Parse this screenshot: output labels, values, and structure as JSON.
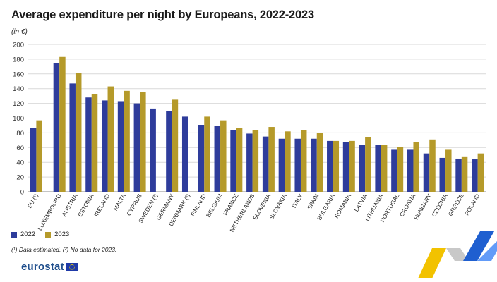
{
  "header": {
    "title": "Average expenditure per night by Europeans, 2022-2023",
    "subtitle": "(in €)"
  },
  "legend": [
    {
      "label": "2022",
      "color": "#2e3c9b"
    },
    {
      "label": "2023",
      "color": "#b59a2a"
    }
  ],
  "footnote": "(¹) Data estimated. (²) No data for 2023.",
  "brand": {
    "wordmark": "eurostat",
    "flag_icon": "eu-flag-icon"
  },
  "chart_data": {
    "type": "bar",
    "categories": [
      "EU (¹)",
      "LUXEMBOURG",
      "AUSTRIA",
      "ESTONIA",
      "IRELAND",
      "MALTA",
      "CYPRUS",
      "SWEDEN (²)",
      "GERMANY",
      "DENMARK (²)",
      "FINLAND",
      "BELGIUM",
      "FRANCE",
      "NETHERLANDS",
      "SLOVENIA",
      "SLOVAKIA",
      "ITALY",
      "SPAIN",
      "BULGARIA",
      "ROMANIA",
      "LATVIA",
      "LITHUANIA",
      "PORTUGAL",
      "CROATIA",
      "HUNGARY",
      "CZECHIA",
      "GREECE",
      "POLAND"
    ],
    "series": [
      {
        "name": "2022",
        "color": "#2e3c9b",
        "values": [
          87,
          175,
          147,
          128,
          124,
          123,
          120,
          113,
          110,
          102,
          90,
          89,
          84,
          79,
          75,
          72,
          72,
          72,
          69,
          67,
          64,
          64,
          57,
          57,
          52,
          46,
          45,
          44
        ]
      },
      {
        "name": "2023",
        "color": "#b59a2a",
        "values": [
          97,
          183,
          161,
          133,
          143,
          137,
          135,
          null,
          125,
          null,
          102,
          97,
          87,
          84,
          88,
          82,
          84,
          80,
          69,
          69,
          74,
          64,
          61,
          67,
          71,
          57,
          48,
          52
        ]
      }
    ],
    "ylim": [
      0,
      200
    ],
    "yticks": [
      0,
      20,
      40,
      60,
      80,
      100,
      120,
      140,
      160,
      180,
      200
    ],
    "xlabel": "",
    "ylabel": "",
    "grid": true
  }
}
